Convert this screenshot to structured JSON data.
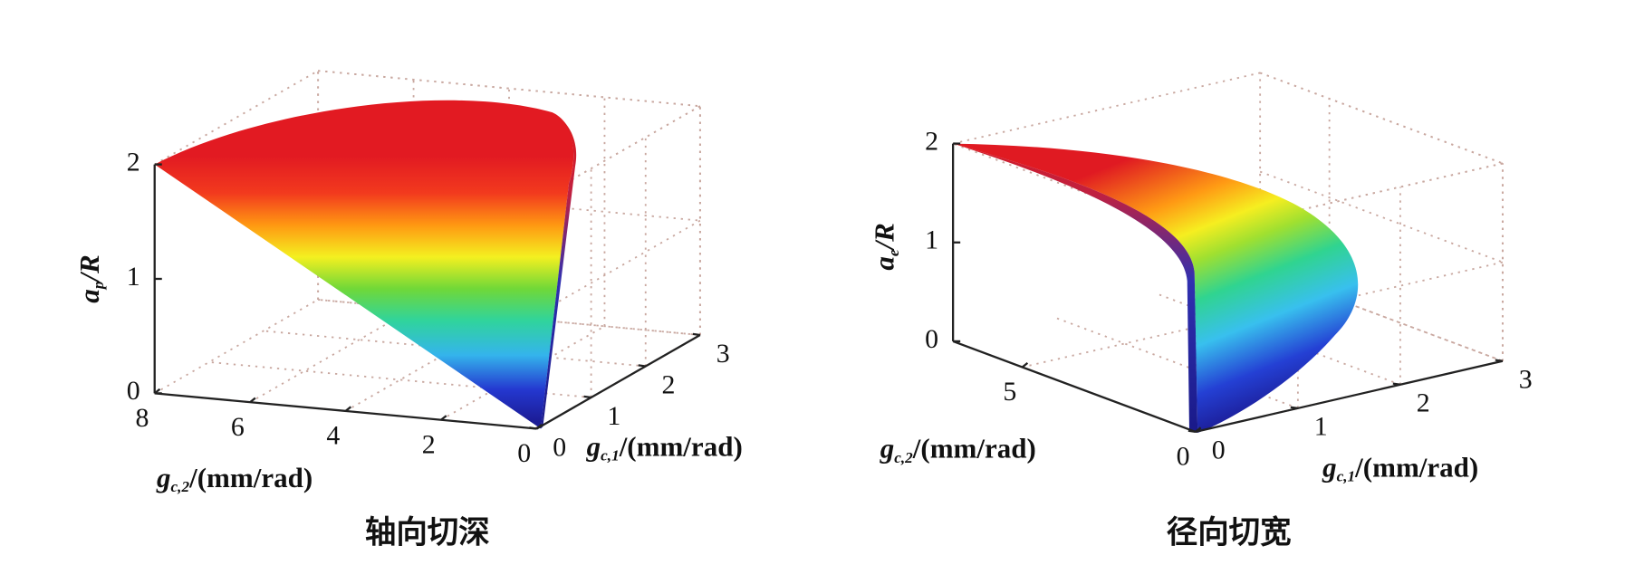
{
  "chart_data": [
    {
      "type": "surface",
      "title": "轴向切深",
      "zlabel": [
        "a",
        "p",
        "/R"
      ],
      "xlabel": [
        "g",
        "c,2",
        "/(mm/rad)"
      ],
      "ylabel": [
        "g",
        "c,1",
        "/(mm/rad)"
      ],
      "xlim": [
        0,
        8
      ],
      "xticks": [
        0,
        2,
        4,
        6,
        8
      ],
      "ylim": [
        0,
        3
      ],
      "yticks": [
        0,
        1,
        2,
        3
      ],
      "zlim": [
        0,
        2
      ],
      "zticks": [
        0,
        1,
        2
      ],
      "grid": true
    },
    {
      "type": "surface",
      "title": "径向切宽",
      "zlabel": [
        "a",
        "e",
        "/R"
      ],
      "xlabel": [
        "g",
        "c,2",
        "/(mm/rad)"
      ],
      "ylabel": [
        "g",
        "c,1",
        "/(mm/rad)"
      ],
      "xlim": [
        0,
        7
      ],
      "xticks": [
        0,
        5
      ],
      "ylim": [
        0,
        3
      ],
      "yticks": [
        0,
        1,
        2,
        3
      ],
      "zlim": [
        0,
        2
      ],
      "zticks": [
        0,
        1,
        2
      ],
      "grid": true
    }
  ]
}
